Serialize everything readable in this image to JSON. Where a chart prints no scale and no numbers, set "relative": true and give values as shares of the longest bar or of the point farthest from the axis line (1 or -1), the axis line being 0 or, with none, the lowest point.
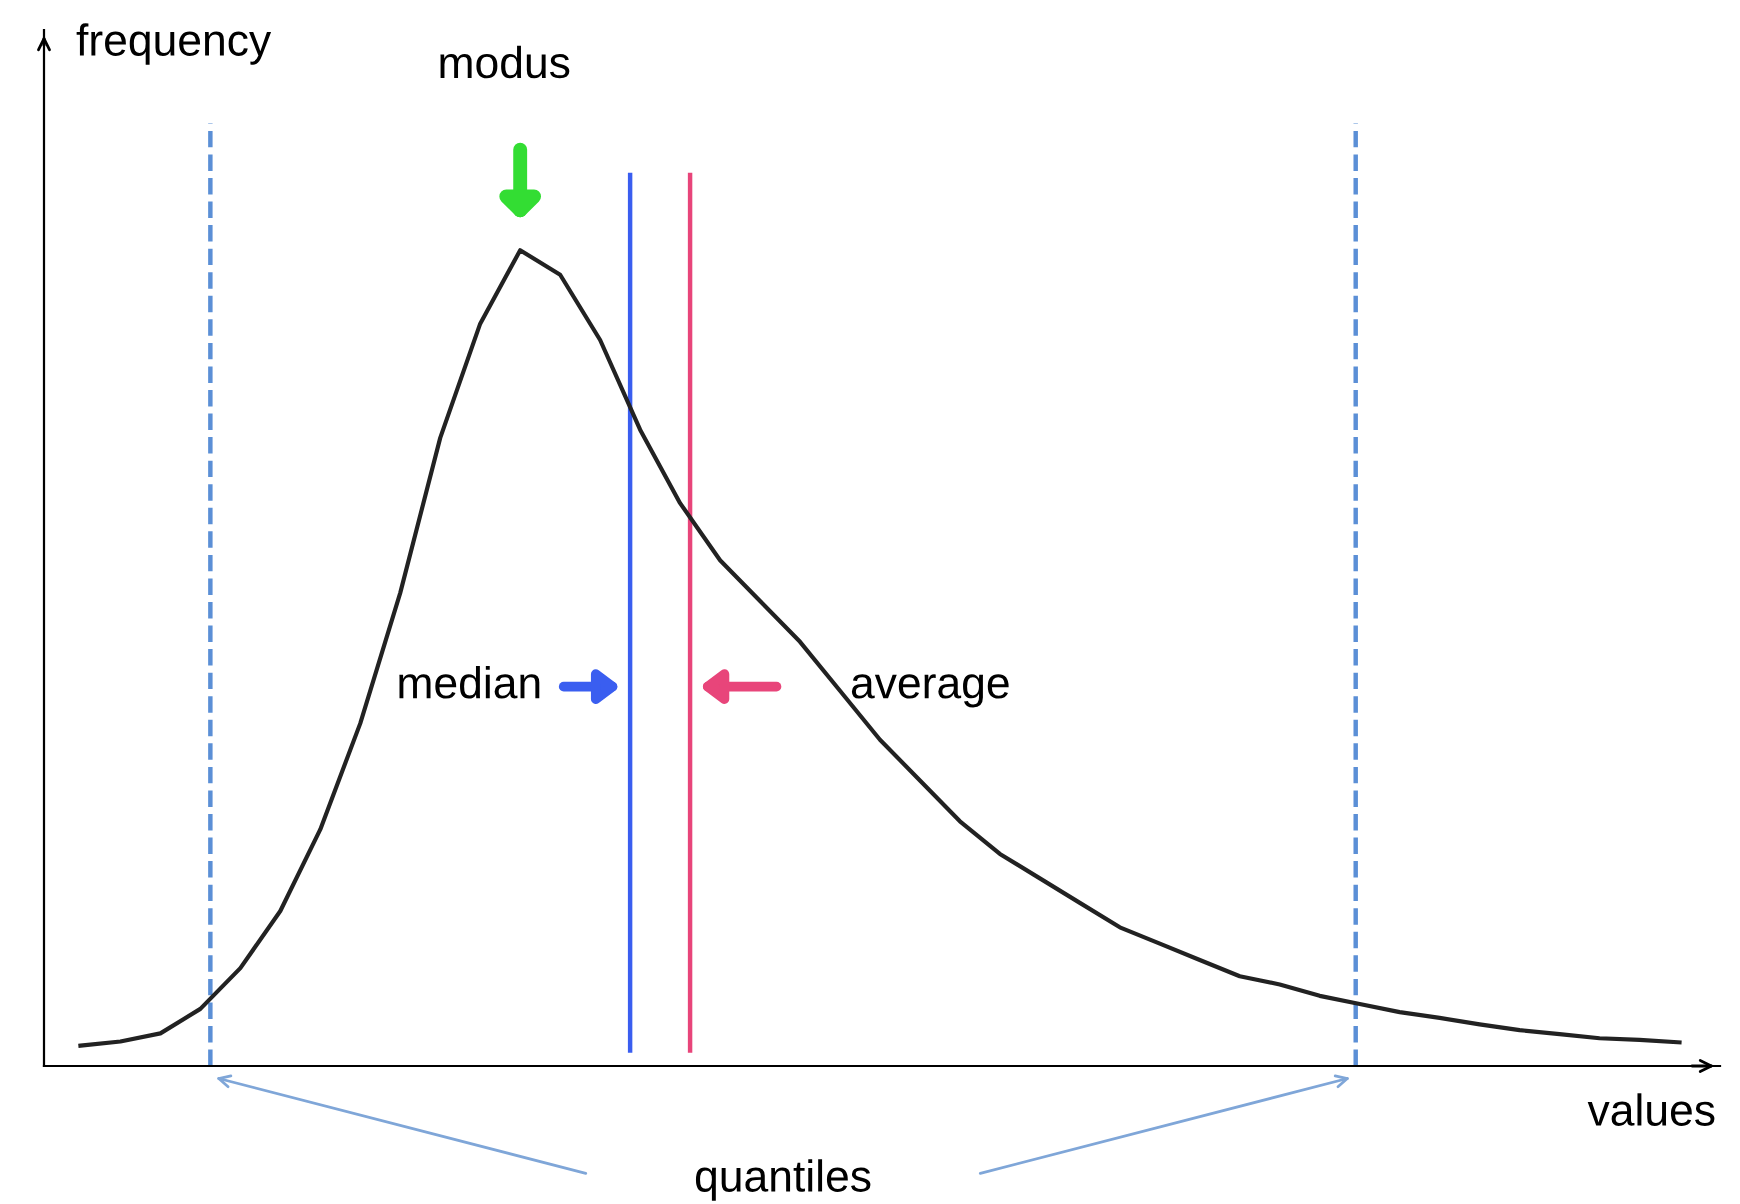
{
  "chart_data": {
    "type": "line",
    "relative": true,
    "xlabel": "values",
    "ylabel": "frequency",
    "categories": [
      null,
      null,
      null,
      null,
      null,
      null,
      null,
      null,
      null,
      null,
      null,
      null,
      null,
      null,
      null,
      null,
      null,
      null,
      null,
      null,
      null,
      null,
      null,
      null,
      null,
      null,
      null,
      null,
      null,
      null,
      null,
      null,
      null,
      null,
      null,
      null,
      null,
      null,
      null,
      null,
      null
    ],
    "series": [
      {
        "color": "#222222",
        "values": [
          0.025,
          0.03,
          0.04,
          0.07,
          0.12,
          0.19,
          0.29,
          0.42,
          0.58,
          0.77,
          0.91,
          1.0,
          0.97,
          0.89,
          0.78,
          0.69,
          0.62,
          0.57,
          0.52,
          0.46,
          0.4,
          0.35,
          0.3,
          0.26,
          0.23,
          0.2,
          0.17,
          0.15,
          0.13,
          0.11,
          0.1,
          0.086,
          0.076,
          0.066,
          0.059,
          0.051,
          0.044,
          0.039,
          0.034,
          0.032,
          0.029
        ]
      }
    ],
    "annotations": [
      "modus",
      "median",
      "average",
      "quantiles"
    ],
    "marker": "none",
    "line_style": "solid",
    "grid": false,
    "legend": false
  }
}
